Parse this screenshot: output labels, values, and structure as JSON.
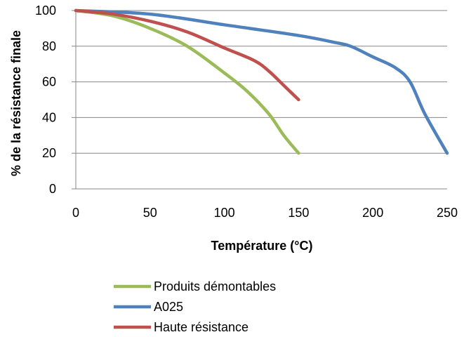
{
  "chart_data": {
    "type": "line",
    "title": "",
    "xlabel": "Température (°C)",
    "ylabel": "% de la résistance finale",
    "xlim": [
      0,
      250
    ],
    "ylim": [
      0,
      100
    ],
    "xticks": [
      "0",
      "50",
      "100",
      "150",
      "200",
      "250"
    ],
    "yticks": [
      "0",
      "20",
      "40",
      "60",
      "80",
      "100"
    ],
    "grid": "horizontal",
    "legend_position": "bottom",
    "series": [
      {
        "name": "Produits démontables",
        "color": "#9BBB59",
        "x": [
          0,
          25,
          50,
          75,
          100,
          115,
          130,
          140,
          150
        ],
        "y": [
          100,
          97,
          90,
          80,
          65,
          55,
          42,
          30,
          20
        ]
      },
      {
        "name": "A025",
        "color": "#4F81BD",
        "x": [
          0,
          50,
          100,
          150,
          175,
          185,
          200,
          215,
          225,
          235,
          250
        ],
        "y": [
          100,
          98,
          92,
          86,
          82,
          80,
          74,
          68,
          60,
          42,
          20
        ]
      },
      {
        "name": "Haute résistance",
        "color": "#C0504D",
        "x": [
          0,
          25,
          50,
          75,
          100,
          120,
          130,
          140,
          150
        ],
        "y": [
          100,
          98,
          94,
          88,
          79,
          72,
          66,
          58,
          50
        ]
      }
    ]
  }
}
